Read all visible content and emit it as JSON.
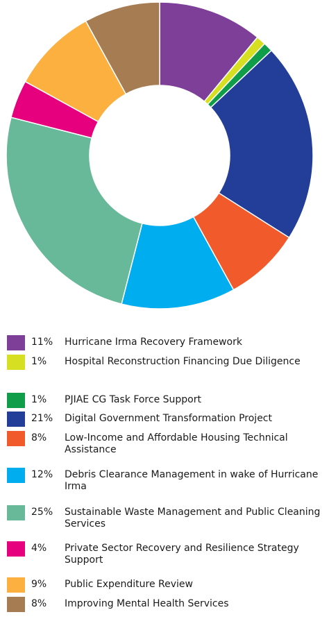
{
  "chart_data": {
    "type": "donut",
    "categories": [
      "Hurricane Irma Recovery Framework",
      "Hospital Reconstruction Financing Due Diligence",
      "PJIAE CG Task Force Support",
      "Digital Government Transformation Project",
      "Low-Income and Affordable Housing Technical Assistance",
      "Debris Clearance Management in wake of Hurricane Irma",
      "Sustainable Waste Management and Public Cleaning Services",
      "Private Sector Recovery and Resilience Strategy Support",
      "Public Expenditure Review",
      "Improving Mental Health Services"
    ],
    "values": [
      11,
      1,
      1,
      21,
      8,
      12,
      25,
      4,
      9,
      8
    ],
    "value_labels": [
      "11%",
      "1%",
      "1%",
      "21%",
      "8%",
      "12%",
      "25%",
      "4%",
      "9%",
      "8%"
    ],
    "colors": [
      "#7d3f98",
      "#d7df23",
      "#0f9d49",
      "#233e99",
      "#f15a2b",
      "#00adef",
      "#67b99a",
      "#e6007e",
      "#fbb040",
      "#a67c52"
    ]
  }
}
